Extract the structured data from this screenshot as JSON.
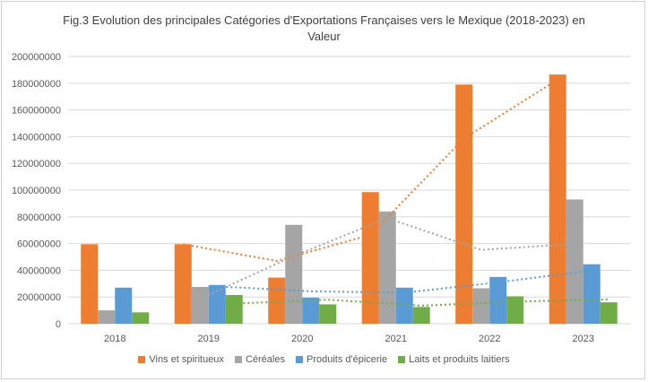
{
  "chart_data": {
    "type": "bar",
    "title_line1": "Fig.3 Evolution des principales Catégories d'Exportations Françaises vers le Mexique (2018-2023) en",
    "title_line2": "Valeur",
    "categories": [
      "2018",
      "2019",
      "2020",
      "2021",
      "2022",
      "2023"
    ],
    "ylim": [
      0,
      200000000
    ],
    "yticks": [
      "0",
      "20000000",
      "40000000",
      "60000000",
      "80000000",
      "100000000",
      "120000000",
      "140000000",
      "160000000",
      "180000000",
      "200000000"
    ],
    "grid": true,
    "legend_position": "bottom",
    "trendlines": "dotted moving average (period 2) per series",
    "series": [
      {
        "name": "Vins et spiritueux",
        "color": "#ED7D31",
        "values": [
          59500000,
          59500000,
          34500000,
          98500000,
          179000000,
          186500000
        ]
      },
      {
        "name": "Céréales",
        "color": "#A5A5A5",
        "values": [
          10000000,
          27500000,
          74000000,
          84000000,
          26500000,
          93000000
        ]
      },
      {
        "name": "Produits d'épicerie",
        "color": "#5B9BD5",
        "values": [
          27000000,
          29000000,
          19500000,
          27000000,
          35000000,
          44500000
        ]
      },
      {
        "name": "Laits et produits laitiers",
        "color": "#70AD47",
        "values": [
          8500000,
          21500000,
          14500000,
          12500000,
          20500000,
          16000000
        ]
      }
    ]
  }
}
